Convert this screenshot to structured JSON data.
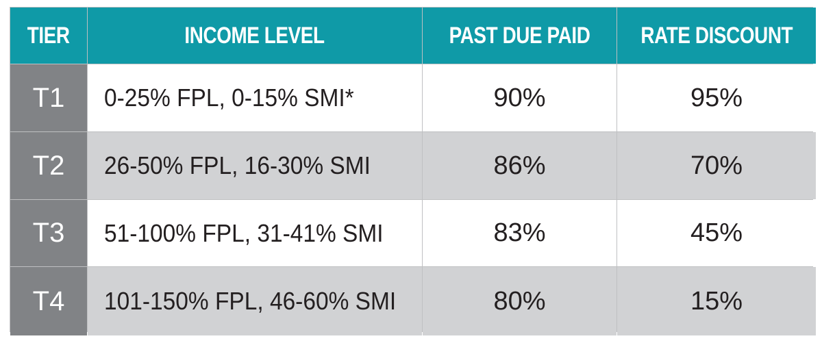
{
  "table": {
    "headers": [
      "TIER",
      "INCOME LEVEL",
      "PAST DUE PAID",
      "RATE DISCOUNT"
    ],
    "rows": [
      {
        "tier": "T1",
        "income": "0-25% FPL, 0-15% SMI*",
        "past_due_paid": "90%",
        "rate_discount": "95%"
      },
      {
        "tier": "T2",
        "income": "26-50% FPL, 16-30% SMI",
        "past_due_paid": "86%",
        "rate_discount": "70%"
      },
      {
        "tier": "T3",
        "income": "51-100% FPL, 31-41% SMI",
        "past_due_paid": "83%",
        "rate_discount": "45%"
      },
      {
        "tier": "T4",
        "income": "101-150% FPL, 46-60% SMI",
        "past_due_paid": "80%",
        "rate_discount": "15%"
      }
    ]
  },
  "colors": {
    "header_bg": "#0f9aa7",
    "tier_bg": "#818386",
    "row_alt_bg": "#d1d2d4",
    "row_bg": "#ffffff"
  }
}
